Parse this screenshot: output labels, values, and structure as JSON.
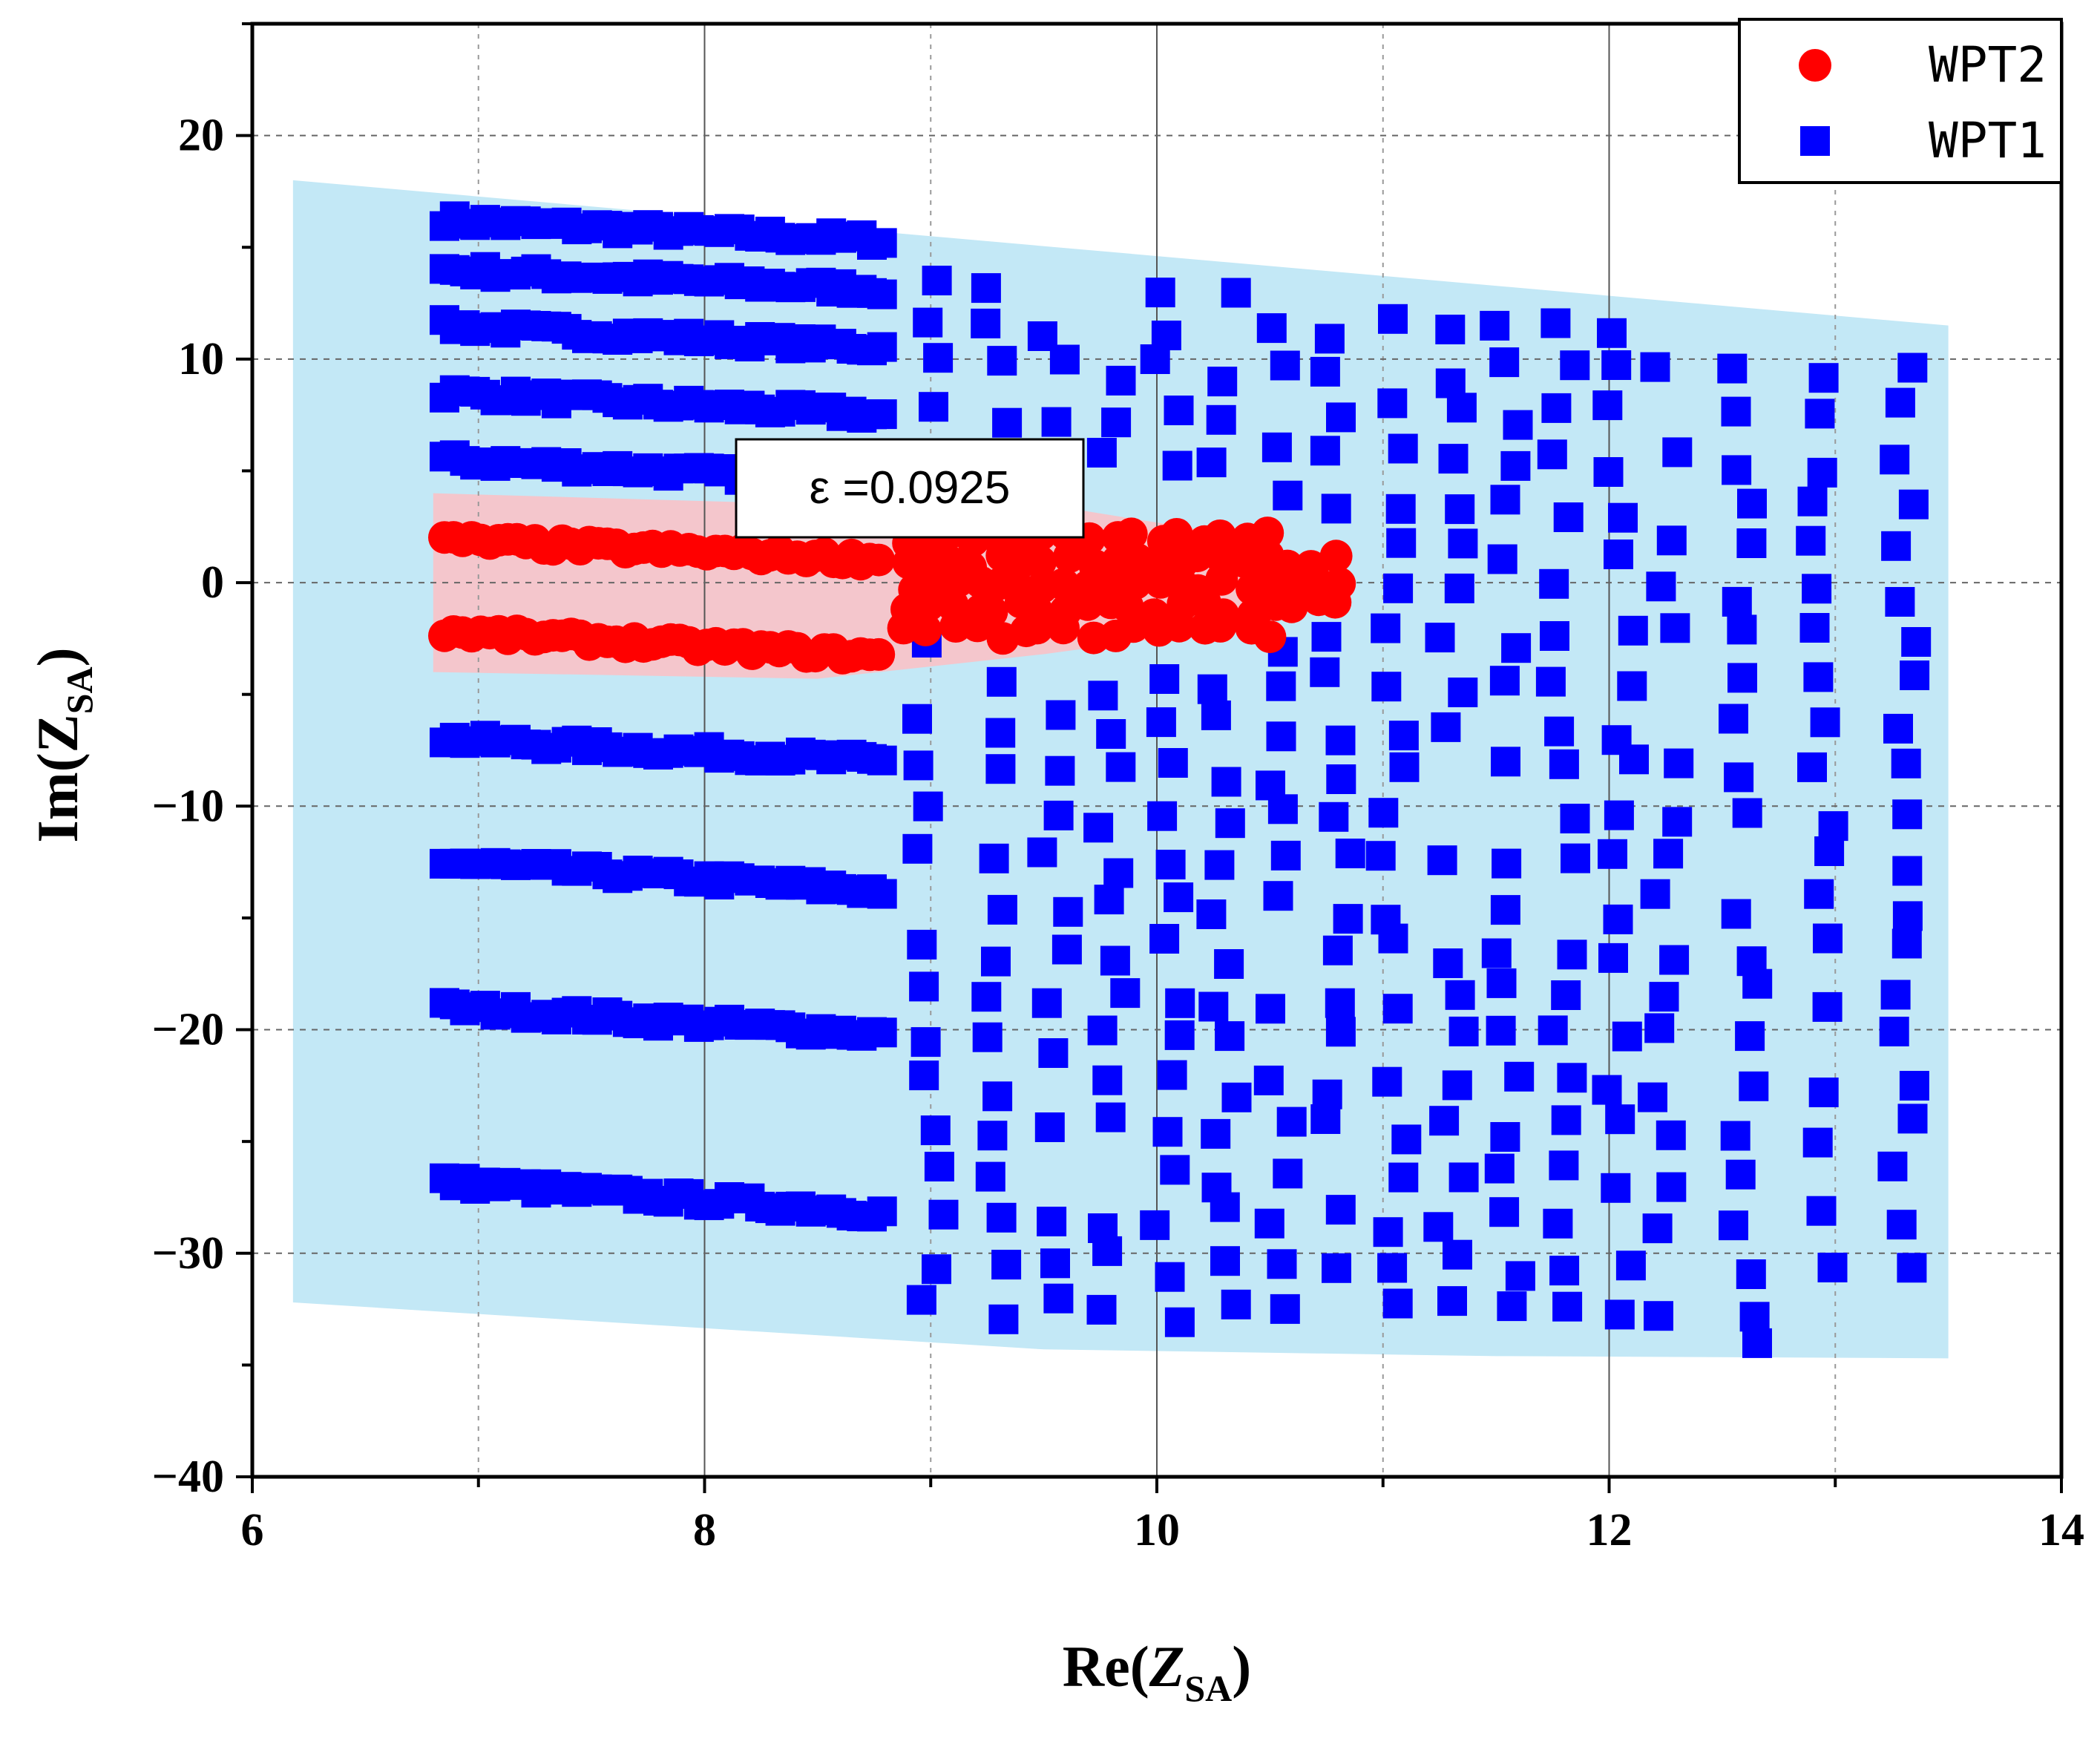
{
  "chart_data": {
    "type": "scatter",
    "xlabel": {
      "main": "Re(",
      "italic": "Z",
      "sub": "SA",
      "close": ")"
    },
    "ylabel": {
      "main": "Im(",
      "italic": "Z",
      "sub": "SA",
      "close": ")"
    },
    "xlim": [
      6,
      14
    ],
    "ylim": [
      -40,
      25
    ],
    "x_ticks": [
      6,
      8,
      10,
      12,
      14
    ],
    "y_ticks": [
      -40,
      -30,
      -20,
      -10,
      0,
      10,
      20
    ],
    "grid": true,
    "legend_position": "top-right",
    "annotation": "ε  =0.0925",
    "regions": [
      {
        "name": "WPT1",
        "color": "#c3e8f6",
        "polygon": [
          [
            6.18,
            18
          ],
          [
            13.5,
            11.5
          ],
          [
            13.5,
            -34.7
          ],
          [
            11.5,
            -34.6
          ],
          [
            9.5,
            -34.3
          ],
          [
            6.18,
            -32.2
          ]
        ]
      },
      {
        "name": "WPT2",
        "color": "#f4c6cc",
        "polygon": [
          [
            6.8,
            4
          ],
          [
            8.5,
            3.5
          ],
          [
            9.5,
            3.5
          ],
          [
            10.3,
            2.2
          ],
          [
            10.85,
            0.3
          ],
          [
            10.3,
            -2.1
          ],
          [
            9.5,
            -3.2
          ],
          [
            8.5,
            -4.3
          ],
          [
            6.8,
            -4
          ]
        ]
      }
    ],
    "series": [
      {
        "name": "WPT2",
        "marker": "circle",
        "color": "#ff0000",
        "bands": [
          {
            "x_start": 6.85,
            "x_end": 8.8,
            "y_start": 1.9,
            "y_end": 1.0
          },
          {
            "x_start": 6.85,
            "x_end": 8.8,
            "y_start": -2.2,
            "y_end": -3.3
          }
        ],
        "clusters": [
          {
            "x_start": 8.9,
            "x_end": 10.5,
            "y_start": -2.2,
            "y_end": 2.0,
            "rows": 5
          },
          {
            "x_start": 10.5,
            "x_end": 10.85,
            "y_start": -1.0,
            "y_end": 1.0,
            "rows": 3
          }
        ]
      },
      {
        "name": "WPT1",
        "marker": "square",
        "color": "#0000ff",
        "bands": [
          {
            "x_start": 6.85,
            "x_end": 8.8,
            "y_start": 16.2,
            "y_end": 15.3
          },
          {
            "x_start": 6.85,
            "x_end": 8.8,
            "y_start": 14.0,
            "y_end": 13.1
          },
          {
            "x_start": 6.85,
            "x_end": 8.8,
            "y_start": 11.5,
            "y_end": 10.5
          },
          {
            "x_start": 6.85,
            "x_end": 8.8,
            "y_start": 8.5,
            "y_end": 7.5
          },
          {
            "x_start": 6.85,
            "x_end": 8.8,
            "y_start": 5.5,
            "y_end": 4.5
          },
          {
            "x_start": 6.85,
            "x_end": 8.8,
            "y_start": -7.0,
            "y_end": -8.0
          },
          {
            "x_start": 6.85,
            "x_end": 8.8,
            "y_start": -12.5,
            "y_end": -13.8
          },
          {
            "x_start": 6.85,
            "x_end": 8.8,
            "y_start": -19.0,
            "y_end": -20.2
          },
          {
            "x_start": 6.85,
            "x_end": 8.8,
            "y_start": -26.8,
            "y_end": -28.2
          }
        ],
        "grid_columns_x": [
          9.0,
          9.3,
          9.55,
          9.8,
          10.05,
          10.3,
          10.55,
          10.8,
          11.05,
          11.3,
          11.55,
          11.8,
          12.05,
          12.25,
          12.6,
          12.95,
          13.3
        ],
        "grid_rows_y": [
          15.5,
          13.5,
          11.5,
          9.5,
          7.5,
          5.5,
          3.5,
          1.5,
          -0.5,
          -2.5,
          -4.5,
          -6.5,
          -8.5,
          -10.5,
          -12.5,
          -14.5,
          -16.5,
          -18.5,
          -20.5,
          -22.5,
          -24.5,
          -26.5,
          -28.5,
          -30.5,
          -32.5,
          -34.5
        ]
      }
    ]
  }
}
